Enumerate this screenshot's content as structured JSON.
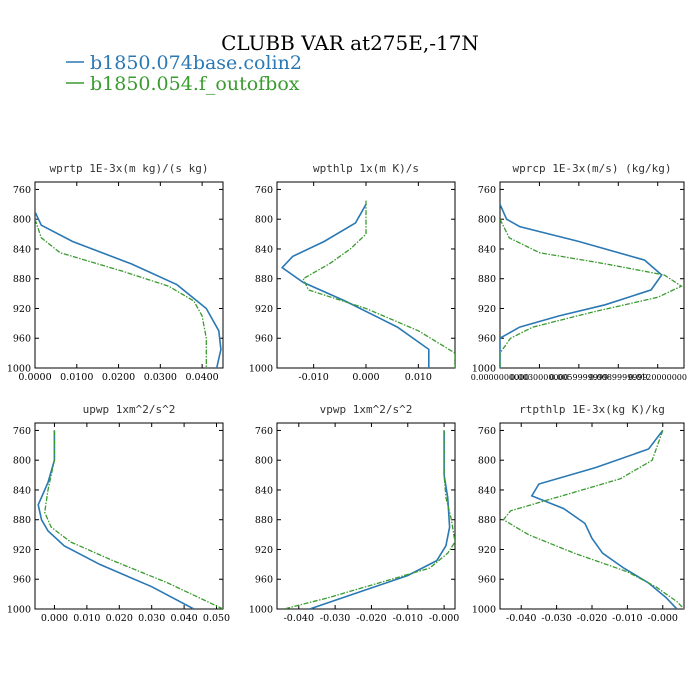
{
  "figure": {
    "title": "CLUBB VAR at275E,-17N",
    "legend": [
      {
        "label": "b1850.074base.colin2",
        "color": "#2a78b4"
      },
      {
        "label": "b1850.054.f_outofbox",
        "color": "#3a9b2f"
      }
    ]
  },
  "chart_data": [
    {
      "type": "line",
      "title": "wprtp  1E-3x(m kg)/(s kg)",
      "xlim": [
        0.0,
        0.045
      ],
      "ylim": [
        1000,
        750
      ],
      "y_inverted": true,
      "xticks": [
        0.0,
        0.01,
        0.02,
        0.03,
        0.04
      ],
      "xtick_labels": [
        "0.0000",
        "0.0100",
        "0.0200",
        "0.0300",
        "0.0400"
      ],
      "yticks": [
        760,
        800,
        840,
        880,
        920,
        960,
        1000
      ],
      "series": [
        {
          "name": "b1850.074base.colin2",
          "color": "#2a78b4",
          "dashed": false,
          "points": [
            [
              0.0,
              760
            ],
            [
              0.0,
              790
            ],
            [
              0.0015,
              808
            ],
            [
              0.009,
              830
            ],
            [
              0.023,
              860
            ],
            [
              0.034,
              888
            ],
            [
              0.041,
              920
            ],
            [
              0.044,
              950
            ],
            [
              0.0445,
              975
            ],
            [
              0.0435,
              1000
            ]
          ]
        },
        {
          "name": "b1850.054.f_outofbox",
          "color": "#3a9b2f",
          "dashed": true,
          "points": [
            [
              0.0,
              800
            ],
            [
              0.0015,
              825
            ],
            [
              0.006,
              845
            ],
            [
              0.021,
              870
            ],
            [
              0.032,
              890
            ],
            [
              0.038,
              910
            ],
            [
              0.04,
              930
            ],
            [
              0.041,
              960
            ],
            [
              0.041,
              1000
            ]
          ]
        }
      ]
    },
    {
      "type": "line",
      "title": "wpthlp  1x(m K)/s",
      "xlim": [
        -0.017,
        0.017
      ],
      "ylim": [
        1000,
        750
      ],
      "y_inverted": true,
      "xticks": [
        -0.01,
        0.0,
        0.01
      ],
      "xtick_labels": [
        "-0.010",
        "0.000",
        "0.010"
      ],
      "yticks": [
        760,
        800,
        840,
        880,
        920,
        960,
        1000
      ],
      "series": [
        {
          "name": "b1850.074base.colin2",
          "color": "#2a78b4",
          "dashed": false,
          "points": [
            [
              0.0,
              780
            ],
            [
              -0.002,
              805
            ],
            [
              -0.008,
              830
            ],
            [
              -0.014,
              850
            ],
            [
              -0.016,
              865
            ],
            [
              -0.012,
              885
            ],
            [
              -0.004,
              910
            ],
            [
              0.006,
              945
            ],
            [
              0.012,
              975
            ],
            [
              0.012,
              1000
            ]
          ]
        },
        {
          "name": "b1850.054.f_outofbox",
          "color": "#3a9b2f",
          "dashed": true,
          "points": [
            [
              0.0,
              775
            ],
            [
              0.0,
              820
            ],
            [
              -0.003,
              840
            ],
            [
              -0.007,
              860
            ],
            [
              -0.012,
              880
            ],
            [
              -0.011,
              895
            ],
            [
              0.0,
              920
            ],
            [
              0.01,
              950
            ],
            [
              0.017,
              980
            ],
            [
              0.017,
              1000
            ]
          ]
        }
      ]
    },
    {
      "type": "line",
      "title": "wprcp  1E-3x(m/s) (kg/kg)",
      "xlim": [
        0.0,
        0.014
      ],
      "ylim": [
        1000,
        750
      ],
      "y_inverted": true,
      "xticks": [
        0.0,
        0.003,
        0.006,
        0.009,
        0.012
      ],
      "xtick_labels": [
        "0.0000000000",
        "0.0030000000",
        "0.0059999999",
        "0.0089999999",
        "0.0120000000"
      ],
      "yticks": [
        760,
        800,
        840,
        880,
        920,
        960,
        1000
      ],
      "series": [
        {
          "name": "b1850.074base.colin2",
          "color": "#2a78b4",
          "dashed": false,
          "points": [
            [
              0.0,
              780
            ],
            [
              0.0005,
              800
            ],
            [
              0.0015,
              810
            ],
            [
              0.006,
              830
            ],
            [
              0.011,
              855
            ],
            [
              0.0123,
              875
            ],
            [
              0.0115,
              895
            ],
            [
              0.008,
              915
            ],
            [
              0.0045,
              930
            ],
            [
              0.0015,
              945
            ],
            [
              0.0,
              960
            ],
            [
              0.0,
              1000
            ]
          ]
        },
        {
          "name": "b1850.054.f_outofbox",
          "color": "#3a9b2f",
          "dashed": true,
          "points": [
            [
              0.0,
              800
            ],
            [
              0.0007,
              825
            ],
            [
              0.003,
              845
            ],
            [
              0.008,
              860
            ],
            [
              0.0125,
              875
            ],
            [
              0.0138,
              890
            ],
            [
              0.012,
              905
            ],
            [
              0.007,
              925
            ],
            [
              0.0025,
              945
            ],
            [
              0.0008,
              960
            ],
            [
              0.0,
              980
            ],
            [
              0.0,
              1000
            ]
          ]
        }
      ]
    },
    {
      "type": "line",
      "title": "upwp  1xm^2/s^2",
      "xlim": [
        -0.006,
        0.052
      ],
      "ylim": [
        1000,
        750
      ],
      "y_inverted": true,
      "xticks": [
        0.0,
        0.01,
        0.02,
        0.03,
        0.04,
        0.05
      ],
      "xtick_labels": [
        "0.000",
        "0.010",
        "0.020",
        "0.030",
        "0.040",
        "0.050"
      ],
      "yticks": [
        760,
        800,
        840,
        880,
        920,
        960,
        1000
      ],
      "series": [
        {
          "name": "b1850.074base.colin2",
          "color": "#2a78b4",
          "dashed": false,
          "points": [
            [
              0.0,
              760
            ],
            [
              0.0,
              800
            ],
            [
              -0.002,
              830
            ],
            [
              -0.005,
              860
            ],
            [
              -0.004,
              880
            ],
            [
              -0.002,
              895
            ],
            [
              0.003,
              915
            ],
            [
              0.014,
              940
            ],
            [
              0.03,
              970
            ],
            [
              0.043,
              1000
            ]
          ]
        },
        {
          "name": "b1850.054.f_outofbox",
          "color": "#3a9b2f",
          "dashed": true,
          "points": [
            [
              0.0,
              760
            ],
            [
              0.0,
              800
            ],
            [
              -0.002,
              840
            ],
            [
              -0.003,
              870
            ],
            [
              -0.001,
              890
            ],
            [
              0.005,
              910
            ],
            [
              0.018,
              935
            ],
            [
              0.035,
              965
            ],
            [
              0.052,
              1000
            ]
          ]
        }
      ]
    },
    {
      "type": "line",
      "title": "vpwp  1xm^2/s^2",
      "xlim": [
        -0.046,
        0.003
      ],
      "ylim": [
        1000,
        750
      ],
      "y_inverted": true,
      "xticks": [
        -0.04,
        -0.03,
        -0.02,
        -0.01,
        0.0
      ],
      "xtick_labels": [
        "-0.040",
        "-0.030",
        "-0.020",
        "-0.010",
        "-0.000"
      ],
      "yticks": [
        760,
        800,
        840,
        880,
        920,
        960,
        1000
      ],
      "series": [
        {
          "name": "b1850.074base.colin2",
          "color": "#2a78b4",
          "dashed": false,
          "points": [
            [
              0.0,
              760
            ],
            [
              0.0,
              820
            ],
            [
              0.001,
              850
            ],
            [
              0.0015,
              890
            ],
            [
              0.0005,
              915
            ],
            [
              -0.002,
              935
            ],
            [
              -0.01,
              955
            ],
            [
              -0.022,
              975
            ],
            [
              -0.037,
              1000
            ]
          ]
        },
        {
          "name": "b1850.054.f_outofbox",
          "color": "#3a9b2f",
          "dashed": true,
          "points": [
            [
              0.0,
              760
            ],
            [
              0.0,
              820
            ],
            [
              0.0005,
              850
            ],
            [
              0.002,
              880
            ],
            [
              0.003,
              910
            ],
            [
              0.001,
              925
            ],
            [
              -0.004,
              945
            ],
            [
              -0.018,
              965
            ],
            [
              -0.032,
              985
            ],
            [
              -0.044,
              1000
            ]
          ]
        }
      ]
    },
    {
      "type": "line",
      "title": "rtpthlp  1E-3x(kg K)/kg",
      "xlim": [
        -0.046,
        0.006
      ],
      "ylim": [
        1000,
        750
      ],
      "y_inverted": true,
      "xticks": [
        -0.04,
        -0.03,
        -0.02,
        -0.01,
        0.0
      ],
      "xtick_labels": [
        "-0.040",
        "-0.030",
        "-0.020",
        "-0.010",
        "-0.000"
      ],
      "yticks": [
        760,
        800,
        840,
        880,
        920,
        960,
        1000
      ],
      "series": [
        {
          "name": "b1850.074base.colin2",
          "color": "#2a78b4",
          "dashed": false,
          "points": [
            [
              0.0,
              760
            ],
            [
              -0.004,
              785
            ],
            [
              -0.019,
              810
            ],
            [
              -0.035,
              832
            ],
            [
              -0.037,
              848
            ],
            [
              -0.028,
              865
            ],
            [
              -0.022,
              885
            ],
            [
              -0.02,
              905
            ],
            [
              -0.017,
              925
            ],
            [
              -0.011,
              945
            ],
            [
              -0.004,
              965
            ],
            [
              0.001,
              985
            ],
            [
              0.004,
              1000
            ]
          ]
        },
        {
          "name": "b1850.054.f_outofbox",
          "color": "#3a9b2f",
          "dashed": true,
          "points": [
            [
              0.0,
              760
            ],
            [
              -0.003,
              800
            ],
            [
              -0.012,
              825
            ],
            [
              -0.03,
              850
            ],
            [
              -0.043,
              868
            ],
            [
              -0.045,
              880
            ],
            [
              -0.038,
              900
            ],
            [
              -0.025,
              925
            ],
            [
              -0.01,
              950
            ],
            [
              -0.002,
              970
            ],
            [
              0.004,
              990
            ],
            [
              0.006,
              1000
            ]
          ]
        }
      ]
    }
  ]
}
